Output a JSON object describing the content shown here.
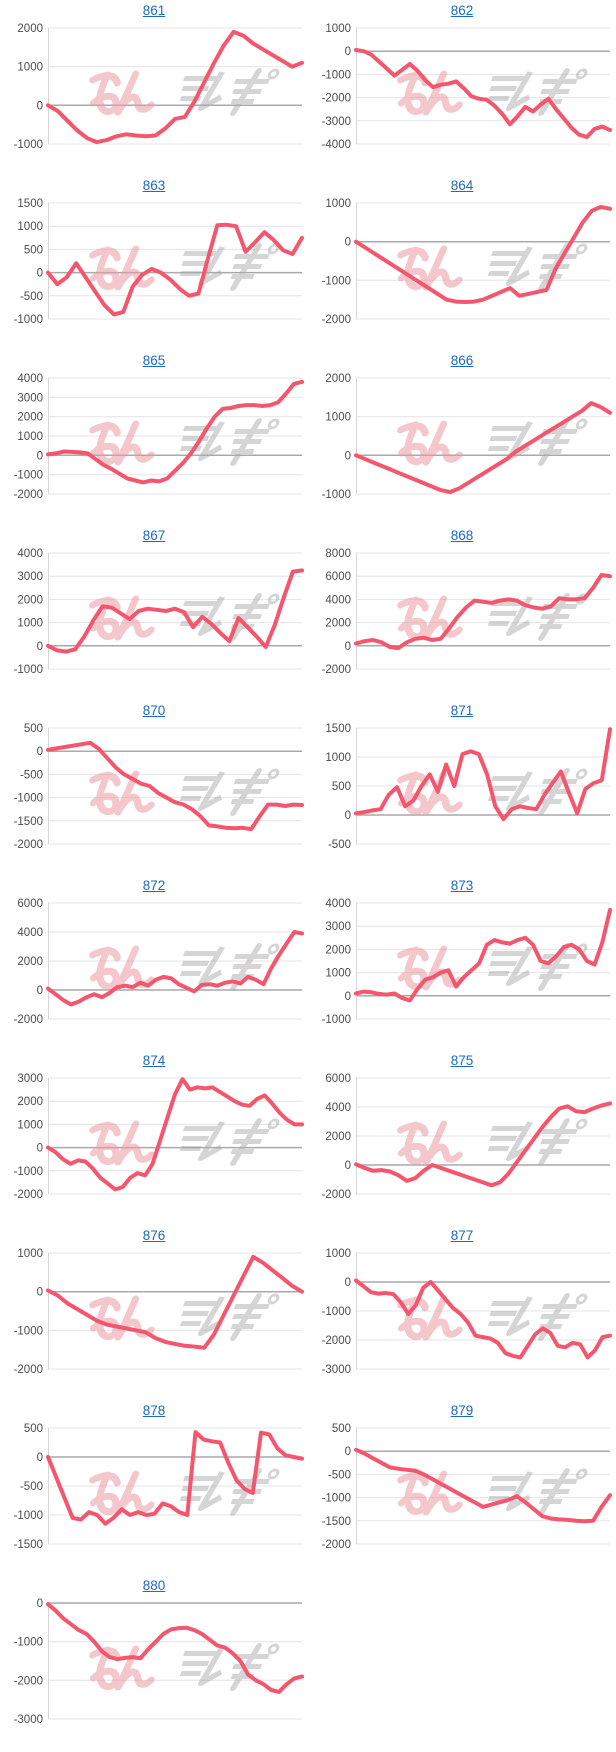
{
  "style": {
    "line_color": "#f4566e",
    "link_color": "#1a6ac5",
    "grid_color": "#e4e4e4",
    "zero_line_color": "#a9a9a9",
    "axis_line_color": "#d6d6d6",
    "tick_label_color": "#4d4d4d",
    "background": "#ffffff"
  },
  "watermark": {
    "text": "みんレポ",
    "pink_color": "#eb9aa4",
    "gray_color": "#ababab"
  },
  "chart_data": [
    {
      "id": "861",
      "type": "line",
      "legend": "none",
      "grid": true,
      "yticks": [
        2000,
        1000,
        0,
        -1000
      ],
      "ylim": [
        -1000,
        2000
      ],
      "values": [
        0,
        -150,
        -400,
        -650,
        -850,
        -950,
        -900,
        -800,
        -750,
        -780,
        -800,
        -780,
        -600,
        -350,
        -300,
        100,
        600,
        1100,
        1550,
        1900,
        1800,
        1600,
        1450,
        1300,
        1150,
        1000,
        1100
      ]
    },
    {
      "id": "862",
      "type": "line",
      "legend": "none",
      "grid": true,
      "yticks": [
        1000,
        0,
        -1000,
        -2000,
        -3000,
        -4000
      ],
      "ylim": [
        -4000,
        1000
      ],
      "values": [
        50,
        0,
        -150,
        -450,
        -750,
        -1050,
        -800,
        -550,
        -850,
        -1250,
        -1550,
        -1450,
        -1400,
        -1300,
        -1600,
        -1950,
        -2050,
        -2100,
        -2350,
        -2700,
        -3150,
        -2800,
        -2400,
        -2600,
        -2300,
        -2050,
        -2500,
        -2900,
        -3300,
        -3600,
        -3700,
        -3350,
        -3250,
        -3400
      ]
    },
    {
      "id": "863",
      "type": "line",
      "legend": "none",
      "grid": true,
      "yticks": [
        1500,
        1000,
        500,
        0,
        -500,
        -1000
      ],
      "ylim": [
        -1000,
        1500
      ],
      "values": [
        0,
        -250,
        -100,
        200,
        -100,
        -400,
        -700,
        -900,
        -850,
        -300,
        -50,
        80,
        0,
        -150,
        -350,
        -500,
        -450,
        300,
        1020,
        1030,
        1000,
        450,
        650,
        870,
        700,
        480,
        400,
        750
      ]
    },
    {
      "id": "864",
      "type": "line",
      "legend": "none",
      "grid": true,
      "yticks": [
        1000,
        0,
        -1000,
        -2000
      ],
      "ylim": [
        -2000,
        1000
      ],
      "values": [
        0,
        -150,
        -300,
        -450,
        -600,
        -750,
        -900,
        -1050,
        -1200,
        -1350,
        -1500,
        -1550,
        -1560,
        -1550,
        -1500,
        -1400,
        -1300,
        -1200,
        -1400,
        -1350,
        -1300,
        -1250,
        -700,
        -300,
        100,
        500,
        800,
        900,
        850
      ]
    },
    {
      "id": "865",
      "type": "line",
      "legend": "none",
      "grid": true,
      "yticks": [
        4000,
        3000,
        2000,
        1000,
        0,
        -1000,
        -2000
      ],
      "ylim": [
        -2000,
        4000
      ],
      "values": [
        50,
        100,
        200,
        180,
        150,
        100,
        -200,
        -500,
        -700,
        -950,
        -1200,
        -1300,
        -1400,
        -1300,
        -1350,
        -1200,
        -800,
        -400,
        100,
        700,
        1400,
        2000,
        2400,
        2450,
        2550,
        2600,
        2600,
        2550,
        2600,
        2750,
        3200,
        3700,
        3800
      ]
    },
    {
      "id": "866",
      "type": "line",
      "legend": "none",
      "grid": true,
      "yticks": [
        2000,
        1000,
        0,
        -1000
      ],
      "ylim": [
        -1000,
        2000
      ],
      "values": [
        0,
        -100,
        -200,
        -300,
        -400,
        -500,
        -600,
        -700,
        -800,
        -900,
        -950,
        -850,
        -700,
        -550,
        -400,
        -250,
        -100,
        100,
        250,
        400,
        550,
        700,
        850,
        1000,
        1150,
        1350,
        1250,
        1100
      ]
    },
    {
      "id": "867",
      "type": "line",
      "legend": "none",
      "grid": true,
      "yticks": [
        4000,
        3000,
        2000,
        1000,
        0,
        -1000
      ],
      "ylim": [
        -1000,
        4000
      ],
      "values": [
        0,
        -200,
        -250,
        -150,
        400,
        1100,
        1700,
        1650,
        1400,
        1150,
        1500,
        1600,
        1550,
        1500,
        1600,
        1450,
        800,
        1250,
        950,
        550,
        200,
        1200,
        800,
        400,
        -50,
        900,
        2100,
        3200,
        3250
      ]
    },
    {
      "id": "868",
      "type": "line",
      "legend": "none",
      "grid": true,
      "yticks": [
        8000,
        6000,
        4000,
        2000,
        0,
        -2000
      ],
      "ylim": [
        -2000,
        8000
      ],
      "values": [
        200,
        400,
        500,
        300,
        -100,
        -200,
        300,
        600,
        700,
        500,
        600,
        1500,
        2500,
        3300,
        3900,
        3800,
        3700,
        3900,
        4000,
        3900,
        3500,
        3300,
        3200,
        3400,
        4100,
        4000,
        4000,
        4100,
        5000,
        6100,
        6000
      ]
    },
    {
      "id": "870",
      "type": "line",
      "legend": "none",
      "grid": true,
      "yticks": [
        500,
        0,
        -500,
        -1000,
        -1500,
        -2000
      ],
      "ylim": [
        -2000,
        500
      ],
      "values": [
        30,
        60,
        90,
        120,
        150,
        180,
        50,
        -150,
        -350,
        -500,
        -600,
        -700,
        -750,
        -900,
        -1000,
        -1100,
        -1150,
        -1250,
        -1400,
        -1600,
        -1620,
        -1650,
        -1660,
        -1650,
        -1680,
        -1400,
        -1150,
        -1150,
        -1180,
        -1150,
        -1160
      ]
    },
    {
      "id": "871",
      "type": "line",
      "legend": "none",
      "grid": true,
      "yticks": [
        1500,
        1000,
        500,
        0,
        -500
      ],
      "ylim": [
        -500,
        1500
      ],
      "values": [
        30,
        50,
        80,
        100,
        350,
        480,
        150,
        250,
        500,
        700,
        400,
        870,
        500,
        1050,
        1100,
        1050,
        700,
        150,
        -70,
        100,
        150,
        120,
        100,
        350,
        550,
        750,
        380,
        30,
        450,
        550,
        600,
        1480
      ]
    },
    {
      "id": "872",
      "type": "line",
      "legend": "none",
      "grid": true,
      "yticks": [
        6000,
        4000,
        2000,
        0,
        -2000
      ],
      "ylim": [
        -2000,
        6000
      ],
      "values": [
        100,
        -300,
        -700,
        -1000,
        -800,
        -500,
        -300,
        -500,
        -200,
        200,
        300,
        200,
        500,
        300,
        700,
        900,
        800,
        400,
        150,
        -100,
        350,
        400,
        300,
        500,
        600,
        450,
        900,
        700,
        400,
        1500,
        2400,
        3200,
        4000,
        3900
      ]
    },
    {
      "id": "873",
      "type": "line",
      "legend": "none",
      "grid": true,
      "yticks": [
        4000,
        3000,
        2000,
        1000,
        0,
        -1000
      ],
      "ylim": [
        -1000,
        4000
      ],
      "values": [
        100,
        180,
        150,
        80,
        50,
        100,
        -100,
        -200,
        300,
        700,
        800,
        1000,
        1100,
        400,
        800,
        1100,
        1400,
        2200,
        2400,
        2300,
        2250,
        2400,
        2500,
        2200,
        1500,
        1400,
        1700,
        2100,
        2200,
        2000,
        1500,
        1350,
        2300,
        3700
      ]
    },
    {
      "id": "874",
      "type": "line",
      "legend": "none",
      "grid": true,
      "yticks": [
        3000,
        2000,
        1000,
        0,
        -1000,
        -2000
      ],
      "ylim": [
        -2000,
        3000
      ],
      "values": [
        0,
        -200,
        -500,
        -700,
        -550,
        -600,
        -900,
        -1300,
        -1550,
        -1800,
        -1700,
        -1300,
        -1100,
        -1200,
        -700,
        300,
        1300,
        2300,
        2950,
        2500,
        2600,
        2550,
        2600,
        2400,
        2200,
        2000,
        1850,
        1800,
        2100,
        2250,
        1900,
        1500,
        1200,
        1000,
        1000
      ]
    },
    {
      "id": "875",
      "type": "line",
      "legend": "none",
      "grid": true,
      "yticks": [
        6000,
        4000,
        2000,
        0,
        -2000
      ],
      "ylim": [
        -2000,
        6000
      ],
      "values": [
        50,
        -200,
        -400,
        -350,
        -450,
        -700,
        -1100,
        -900,
        -400,
        0,
        -200,
        -400,
        -600,
        -800,
        -1000,
        -1200,
        -1400,
        -1200,
        -600,
        200,
        1000,
        1800,
        2600,
        3300,
        3900,
        4050,
        3700,
        3650,
        3900,
        4100,
        4250
      ]
    },
    {
      "id": "876",
      "type": "line",
      "legend": "none",
      "grid": true,
      "yticks": [
        1000,
        0,
        -1000,
        -2000
      ],
      "ylim": [
        -2000,
        1000
      ],
      "values": [
        30,
        -100,
        -300,
        -450,
        -600,
        -750,
        -850,
        -900,
        -950,
        -1000,
        -1050,
        -1200,
        -1300,
        -1350,
        -1400,
        -1420,
        -1450,
        -1100,
        -600,
        -100,
        400,
        900,
        750,
        550,
        350,
        150,
        0
      ]
    },
    {
      "id": "877",
      "type": "line",
      "legend": "none",
      "grid": true,
      "yticks": [
        1000,
        0,
        -1000,
        -2000,
        -3000
      ],
      "ylim": [
        -3000,
        1000
      ],
      "values": [
        50,
        -150,
        -350,
        -400,
        -380,
        -420,
        -700,
        -1100,
        -800,
        -200,
        0,
        -300,
        -600,
        -900,
        -1100,
        -1400,
        -1850,
        -1900,
        -1950,
        -2100,
        -2450,
        -2550,
        -2600,
        -2200,
        -1800,
        -1600,
        -1750,
        -2200,
        -2250,
        -2100,
        -2150,
        -2600,
        -2350,
        -1900,
        -1850
      ]
    },
    {
      "id": "878",
      "type": "line",
      "legend": "none",
      "grid": true,
      "yticks": [
        500,
        0,
        -500,
        -1000,
        -1500
      ],
      "ylim": [
        -1500,
        500
      ],
      "values": [
        0,
        -350,
        -700,
        -1050,
        -1080,
        -950,
        -1000,
        -1150,
        -1050,
        -900,
        -1000,
        -950,
        -1000,
        -980,
        -800,
        -850,
        -950,
        -1000,
        430,
        300,
        270,
        250,
        -100,
        -400,
        -550,
        -620,
        420,
        390,
        150,
        30,
        0,
        -30
      ]
    },
    {
      "id": "879",
      "type": "line",
      "legend": "none",
      "grid": true,
      "yticks": [
        500,
        0,
        -500,
        -1000,
        -1500,
        -2000
      ],
      "ylim": [
        -2000,
        500
      ],
      "values": [
        30,
        -50,
        -150,
        -250,
        -350,
        -380,
        -400,
        -420,
        -500,
        -600,
        -700,
        -800,
        -900,
        -1000,
        -1100,
        -1200,
        -1150,
        -1100,
        -1050,
        -970,
        -1100,
        -1250,
        -1400,
        -1450,
        -1470,
        -1480,
        -1500,
        -1510,
        -1500,
        -1200,
        -950
      ]
    },
    {
      "id": "880",
      "type": "line",
      "legend": "none",
      "grid": true,
      "yticks": [
        0,
        -1000,
        -2000,
        -3000
      ],
      "ylim": [
        -3000,
        0
      ],
      "values": [
        -30,
        -200,
        -400,
        -550,
        -700,
        -800,
        -1000,
        -1250,
        -1400,
        -1450,
        -1420,
        -1400,
        -1430,
        -1200,
        -1000,
        -800,
        -680,
        -650,
        -640,
        -700,
        -800,
        -950,
        -1100,
        -1150,
        -1300,
        -1500,
        -1850,
        -2000,
        -2100,
        -2250,
        -2300,
        -2100,
        -1950,
        -1900
      ]
    }
  ]
}
